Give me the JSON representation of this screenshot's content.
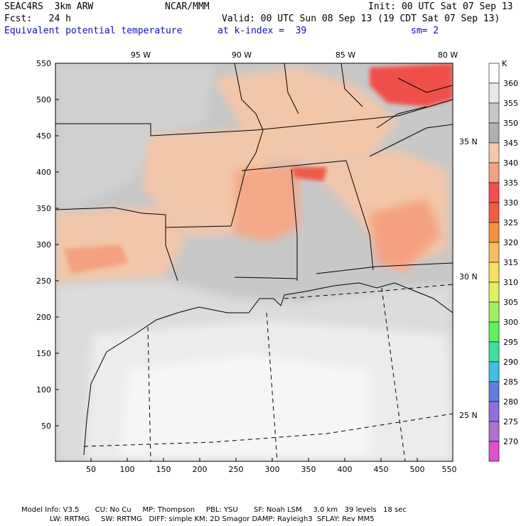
{
  "header": {
    "model": "SEAC4RS  3km ARW",
    "org": "NCAR/MMM",
    "init": "Init: 00 UTC Sat 07 Sep 13",
    "fcst": "Fcst:   24 h",
    "valid": "Valid: 00 UTC Sun 08 Sep 13 (19 CDT Sat 07 Sep 13)",
    "field": "Equivalent potential temperature",
    "level": "at k-index =  39",
    "smooth": "sm= 2"
  },
  "axes": {
    "x_ticks": [
      "50",
      "100",
      "150",
      "200",
      "250",
      "300",
      "350",
      "400",
      "450",
      "500",
      "550"
    ],
    "y_ticks": [
      "50",
      "100",
      "150",
      "200",
      "250",
      "300",
      "350",
      "400",
      "450",
      "500",
      "550"
    ],
    "lon_labels": [
      "95 W",
      "90 W",
      "85 W",
      "80 W"
    ],
    "lat_labels": [
      "35 N",
      "30 N",
      "25 N"
    ]
  },
  "colorbar": {
    "unit": "K",
    "levels": [
      "360",
      "355",
      "350",
      "345",
      "340",
      "335",
      "330",
      "325",
      "320",
      "315",
      "310",
      "305",
      "300",
      "295",
      "290",
      "285",
      "280",
      "275",
      "270"
    ],
    "colors": [
      "#ffffff",
      "#e8e8e8",
      "#c8c8c8",
      "#b0b0b0",
      "#f5c8a8",
      "#f5a080",
      "#f55050",
      "#f06040",
      "#f59040",
      "#f5c060",
      "#f5e060",
      "#e0f060",
      "#a0f060",
      "#60f060",
      "#40e0a0",
      "#40c0e0",
      "#6080e0",
      "#9070e0",
      "#b070d0",
      "#e050d0"
    ]
  },
  "footer": {
    "line1": "Model Info: V3.5       CU: No Cu     MP: Thompson     PBL: YSU       SF: Noah LSM     3.0 km   39 levels   18 sec",
    "line2": "LW: RRTMG     SW: RRTMG   DIFF: simple KM: 2D Smagor DAMP: Rayleigh3  SFLAY: Rev MM5"
  }
}
